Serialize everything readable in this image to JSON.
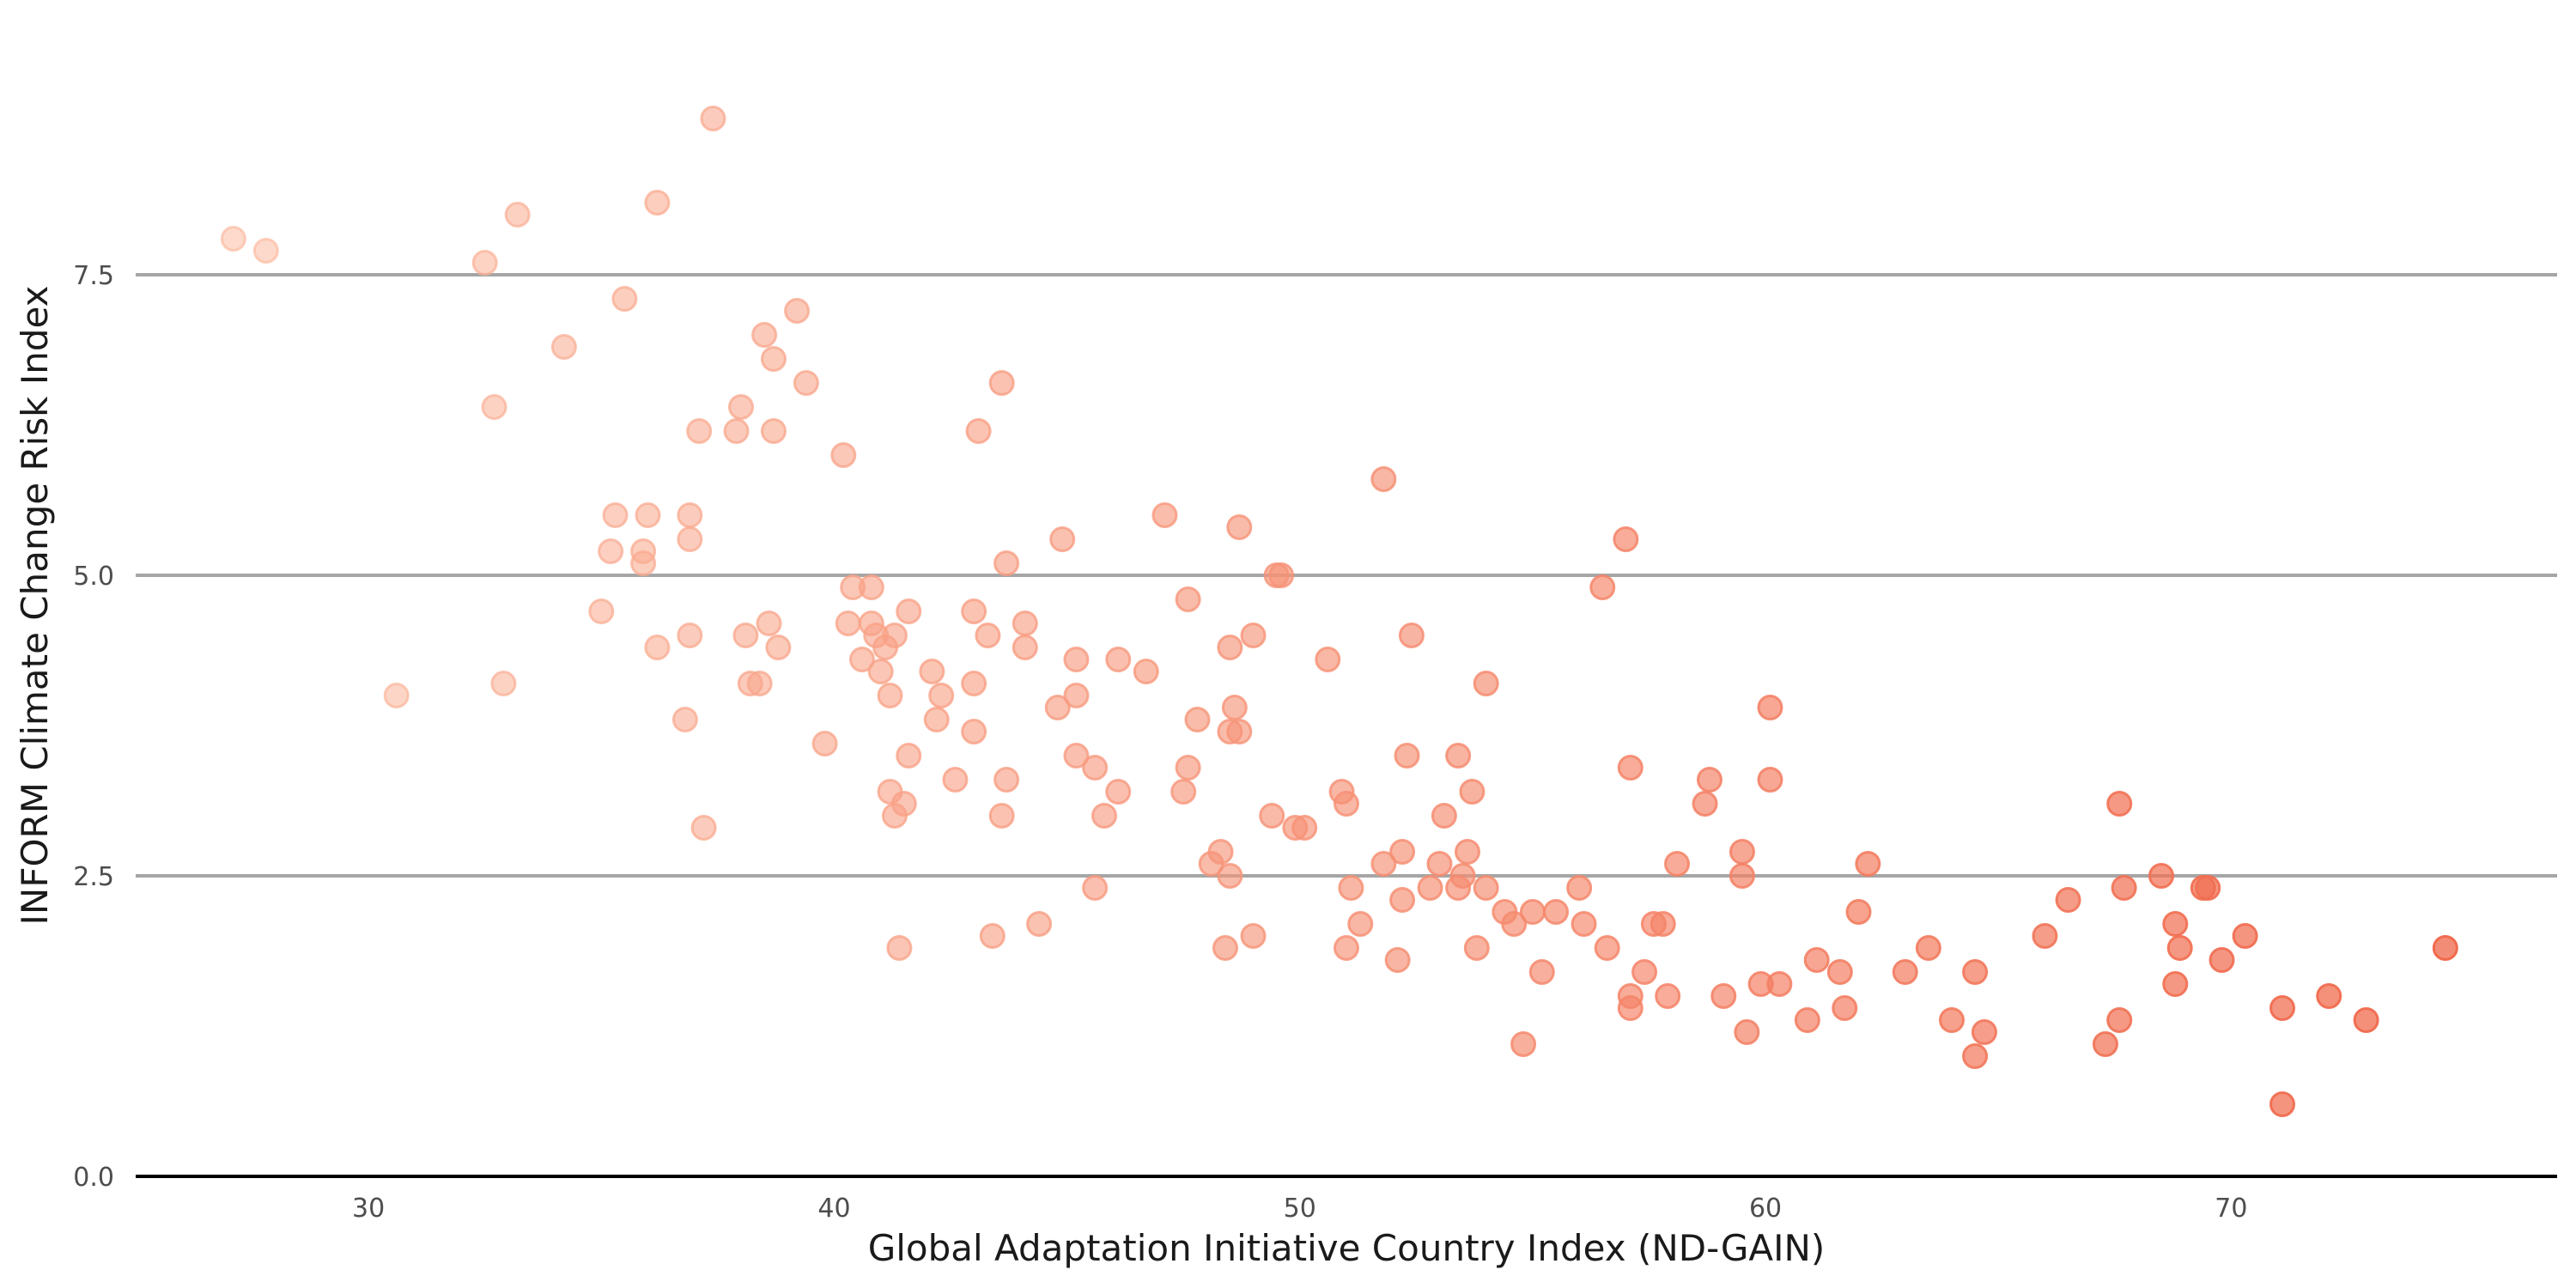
{
  "chart_data": {
    "type": "scatter",
    "title": "",
    "xlabel": "Global Adaptation Initiative Country Index (ND-GAIN)",
    "ylabel": "INFORM Climate Change Risk Index",
    "xlim": [
      25,
      77
    ],
    "ylim": [
      0,
      9.5
    ],
    "x_ticks": [
      30,
      40,
      50,
      60,
      70
    ],
    "x_tick_labels": [
      "30",
      "40",
      "50",
      "60",
      "70"
    ],
    "y_ticks": [
      0,
      2.5,
      5,
      7.5
    ],
    "y_tick_labels": [
      "0.0",
      "2.5",
      "5.0",
      "7.5"
    ],
    "grid": "horizontal",
    "legend": "none",
    "colors": {
      "low_x": "#fcbba1",
      "high_x": "#ef6548",
      "baseline": "#000000",
      "grid": "#a6a6a6"
    },
    "points": [
      [
        27.1,
        7.8
      ],
      [
        27.8,
        7.7
      ],
      [
        30.6,
        4.0
      ],
      [
        32.5,
        7.6
      ],
      [
        32.7,
        6.4
      ],
      [
        32.9,
        4.1
      ],
      [
        33.2,
        8.0
      ],
      [
        34.2,
        6.9
      ],
      [
        35.0,
        4.7
      ],
      [
        35.2,
        5.2
      ],
      [
        35.3,
        5.5
      ],
      [
        35.5,
        7.3
      ],
      [
        35.9,
        5.2
      ],
      [
        35.9,
        5.1
      ],
      [
        36.0,
        5.5
      ],
      [
        36.2,
        8.1
      ],
      [
        36.2,
        4.4
      ],
      [
        36.9,
        5.5
      ],
      [
        36.9,
        5.3
      ],
      [
        36.9,
        4.5
      ],
      [
        36.8,
        3.8
      ],
      [
        37.1,
        6.2
      ],
      [
        37.2,
        2.9
      ],
      [
        37.4,
        8.8
      ],
      [
        37.9,
        6.2
      ],
      [
        38.0,
        6.4
      ],
      [
        38.1,
        4.5
      ],
      [
        38.2,
        4.1
      ],
      [
        38.4,
        4.1
      ],
      [
        38.5,
        7.0
      ],
      [
        38.6,
        4.6
      ],
      [
        38.7,
        6.8
      ],
      [
        38.7,
        6.2
      ],
      [
        38.8,
        4.4
      ],
      [
        39.2,
        7.2
      ],
      [
        39.4,
        6.6
      ],
      [
        39.8,
        3.6
      ],
      [
        40.2,
        6.0
      ],
      [
        40.3,
        4.6
      ],
      [
        40.4,
        4.9
      ],
      [
        40.6,
        4.3
      ],
      [
        40.8,
        4.9
      ],
      [
        40.8,
        4.6
      ],
      [
        40.9,
        4.5
      ],
      [
        41.0,
        4.2
      ],
      [
        41.1,
        4.4
      ],
      [
        41.2,
        4.0
      ],
      [
        41.3,
        4.5
      ],
      [
        41.2,
        3.2
      ],
      [
        41.3,
        3.0
      ],
      [
        41.4,
        1.9
      ],
      [
        41.5,
        3.1
      ],
      [
        41.6,
        3.5
      ],
      [
        41.6,
        4.7
      ],
      [
        42.1,
        4.2
      ],
      [
        42.2,
        3.8
      ],
      [
        42.3,
        4.0
      ],
      [
        42.6,
        3.3
      ],
      [
        43.0,
        4.7
      ],
      [
        43.0,
        4.1
      ],
      [
        43.0,
        3.7
      ],
      [
        43.1,
        6.2
      ],
      [
        43.3,
        4.5
      ],
      [
        43.4,
        2.0
      ],
      [
        43.6,
        6.6
      ],
      [
        43.6,
        3.0
      ],
      [
        43.7,
        3.3
      ],
      [
        43.7,
        5.1
      ],
      [
        44.1,
        4.6
      ],
      [
        44.1,
        4.4
      ],
      [
        44.4,
        2.1
      ],
      [
        44.8,
        3.9
      ],
      [
        44.9,
        5.3
      ],
      [
        45.2,
        4.3
      ],
      [
        45.2,
        4.0
      ],
      [
        45.2,
        3.5
      ],
      [
        45.6,
        3.4
      ],
      [
        45.6,
        2.4
      ],
      [
        45.8,
        3.0
      ],
      [
        46.1,
        4.3
      ],
      [
        46.1,
        3.2
      ],
      [
        46.7,
        4.2
      ],
      [
        47.1,
        5.5
      ],
      [
        47.5,
        3.2
      ],
      [
        47.6,
        4.8
      ],
      [
        47.6,
        3.4
      ],
      [
        47.8,
        3.8
      ],
      [
        48.1,
        2.6
      ],
      [
        48.3,
        2.7
      ],
      [
        48.4,
        1.9
      ],
      [
        48.5,
        4.4
      ],
      [
        48.5,
        3.7
      ],
      [
        48.5,
        2.5
      ],
      [
        48.6,
        3.9
      ],
      [
        48.7,
        3.7
      ],
      [
        48.7,
        5.4
      ],
      [
        49.0,
        4.5
      ],
      [
        49.0,
        2.0
      ],
      [
        49.4,
        3.0
      ],
      [
        49.5,
        5.0
      ],
      [
        49.6,
        5.0
      ],
      [
        49.9,
        2.9
      ],
      [
        50.1,
        2.9
      ],
      [
        50.6,
        4.3
      ],
      [
        50.9,
        3.2
      ],
      [
        51.0,
        3.1
      ],
      [
        51.0,
        1.9
      ],
      [
        51.1,
        2.4
      ],
      [
        51.3,
        2.1
      ],
      [
        51.8,
        5.8
      ],
      [
        51.8,
        2.6
      ],
      [
        52.1,
        1.8
      ],
      [
        52.2,
        2.7
      ],
      [
        52.2,
        2.3
      ],
      [
        52.3,
        3.5
      ],
      [
        52.4,
        4.5
      ],
      [
        52.8,
        2.4
      ],
      [
        53.0,
        2.6
      ],
      [
        53.1,
        3.0
      ],
      [
        53.4,
        2.4
      ],
      [
        53.4,
        3.5
      ],
      [
        53.5,
        2.5
      ],
      [
        53.6,
        2.7
      ],
      [
        53.7,
        3.2
      ],
      [
        53.8,
        1.9
      ],
      [
        54.0,
        4.1
      ],
      [
        54.0,
        2.4
      ],
      [
        54.4,
        2.2
      ],
      [
        54.6,
        2.1
      ],
      [
        54.8,
        1.1
      ],
      [
        55.0,
        2.2
      ],
      [
        55.2,
        1.7
      ],
      [
        55.5,
        2.2
      ],
      [
        56.0,
        2.4
      ],
      [
        56.1,
        2.1
      ],
      [
        56.5,
        4.9
      ],
      [
        56.6,
        1.9
      ],
      [
        57.0,
        5.3
      ],
      [
        57.1,
        3.4
      ],
      [
        57.1,
        1.5
      ],
      [
        57.1,
        1.4
      ],
      [
        57.4,
        1.7
      ],
      [
        57.6,
        2.1
      ],
      [
        57.8,
        2.1
      ],
      [
        57.9,
        1.5
      ],
      [
        58.1,
        2.6
      ],
      [
        58.7,
        3.1
      ],
      [
        58.8,
        3.3
      ],
      [
        59.1,
        1.5
      ],
      [
        59.5,
        2.7
      ],
      [
        59.5,
        2.5
      ],
      [
        59.6,
        1.2
      ],
      [
        59.9,
        1.6
      ],
      [
        60.1,
        3.3
      ],
      [
        60.1,
        3.9
      ],
      [
        60.3,
        1.6
      ],
      [
        60.9,
        1.3
      ],
      [
        61.1,
        1.8
      ],
      [
        61.6,
        1.7
      ],
      [
        61.7,
        1.4
      ],
      [
        62.0,
        2.2
      ],
      [
        62.2,
        2.6
      ],
      [
        63.0,
        1.7
      ],
      [
        63.5,
        1.9
      ],
      [
        64.0,
        1.3
      ],
      [
        64.5,
        1.7
      ],
      [
        64.5,
        1.0
      ],
      [
        64.7,
        1.2
      ],
      [
        66.0,
        2.0
      ],
      [
        66.5,
        2.3
      ],
      [
        67.3,
        1.1
      ],
      [
        67.6,
        1.3
      ],
      [
        67.6,
        3.1
      ],
      [
        67.7,
        2.4
      ],
      [
        68.5,
        2.5
      ],
      [
        68.8,
        2.1
      ],
      [
        68.8,
        1.6
      ],
      [
        68.9,
        1.9
      ],
      [
        69.4,
        2.4
      ],
      [
        69.5,
        2.4
      ],
      [
        69.8,
        1.8
      ],
      [
        70.3,
        2.0
      ],
      [
        71.1,
        1.4
      ],
      [
        71.1,
        0.6
      ],
      [
        72.1,
        1.5
      ],
      [
        72.9,
        1.3
      ],
      [
        74.6,
        1.9
      ]
    ]
  }
}
